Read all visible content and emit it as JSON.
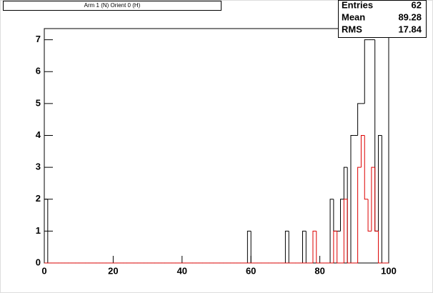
{
  "chart_data": {
    "type": "histogram",
    "title": "Arm 1 (N) Orient 0 (H)",
    "bins": [
      0,
      1,
      2,
      3,
      4,
      5,
      6,
      7,
      8,
      9,
      10,
      11,
      12,
      13,
      14,
      15,
      16,
      17,
      18,
      19,
      20,
      21,
      22,
      23,
      24,
      25,
      26,
      27,
      28,
      29,
      30,
      31,
      32,
      33,
      34,
      35,
      36,
      37,
      38,
      39,
      40,
      41,
      42,
      43,
      44,
      45,
      46,
      47,
      48,
      49,
      50,
      51,
      52,
      53,
      54,
      55,
      56,
      57,
      58,
      59,
      60,
      61,
      62,
      63,
      64,
      65,
      66,
      67,
      68,
      69,
      70,
      71,
      72,
      73,
      74,
      75,
      76,
      77,
      78,
      79,
      80,
      81,
      82,
      83,
      84,
      85,
      86,
      87,
      88,
      89,
      90,
      91,
      92,
      93,
      94,
      95,
      96,
      97,
      98,
      99,
      100
    ],
    "series": [
      {
        "color": "#000000",
        "values": [
          2,
          0,
          0,
          0,
          0,
          0,
          0,
          0,
          0,
          0,
          0,
          0,
          0,
          0,
          0,
          0,
          0,
          0,
          0,
          0,
          0,
          0,
          0,
          0,
          0,
          0,
          0,
          0,
          0,
          0,
          0,
          0,
          0,
          0,
          0,
          0,
          0,
          0,
          0,
          0,
          0,
          0,
          0,
          0,
          0,
          0,
          0,
          0,
          0,
          0,
          0,
          0,
          0,
          0,
          0,
          0,
          0,
          0,
          0,
          1,
          0,
          0,
          0,
          0,
          0,
          0,
          0,
          0,
          0,
          0,
          1,
          0,
          0,
          0,
          0,
          1,
          0,
          0,
          0,
          0,
          0,
          0,
          0,
          2,
          1,
          1,
          2,
          3,
          0,
          4,
          4,
          5,
          5,
          7,
          7,
          7,
          1,
          4,
          0,
          0
        ]
      },
      {
        "color": "#dd0000",
        "values": [
          0,
          0,
          0,
          0,
          0,
          0,
          0,
          0,
          0,
          0,
          0,
          0,
          0,
          0,
          0,
          0,
          0,
          0,
          0,
          0,
          0,
          0,
          0,
          0,
          0,
          0,
          0,
          0,
          0,
          0,
          0,
          0,
          0,
          0,
          0,
          0,
          0,
          0,
          0,
          0,
          0,
          0,
          0,
          0,
          0,
          0,
          0,
          0,
          0,
          0,
          0,
          0,
          0,
          0,
          0,
          0,
          0,
          0,
          0,
          0,
          0,
          0,
          0,
          0,
          0,
          0,
          0,
          0,
          0,
          0,
          0,
          0,
          0,
          0,
          0,
          0,
          0,
          0,
          1,
          0,
          0,
          0,
          0,
          0,
          1,
          0,
          0,
          2,
          0,
          0,
          0,
          3,
          4,
          2,
          1,
          3,
          1,
          0,
          0,
          0
        ]
      }
    ],
    "xlim": [
      0,
      100
    ],
    "xticks": [
      0,
      20,
      40,
      60,
      80,
      100
    ],
    "ylim": [
      0,
      7.35
    ],
    "yticks": [
      0,
      1,
      2,
      3,
      4,
      5,
      6,
      7
    ],
    "stats": [
      {
        "label": "Entries",
        "value": 62
      },
      {
        "label": "Mean",
        "value": 89.28
      },
      {
        "label": "RMS",
        "value": 17.84
      }
    ]
  }
}
